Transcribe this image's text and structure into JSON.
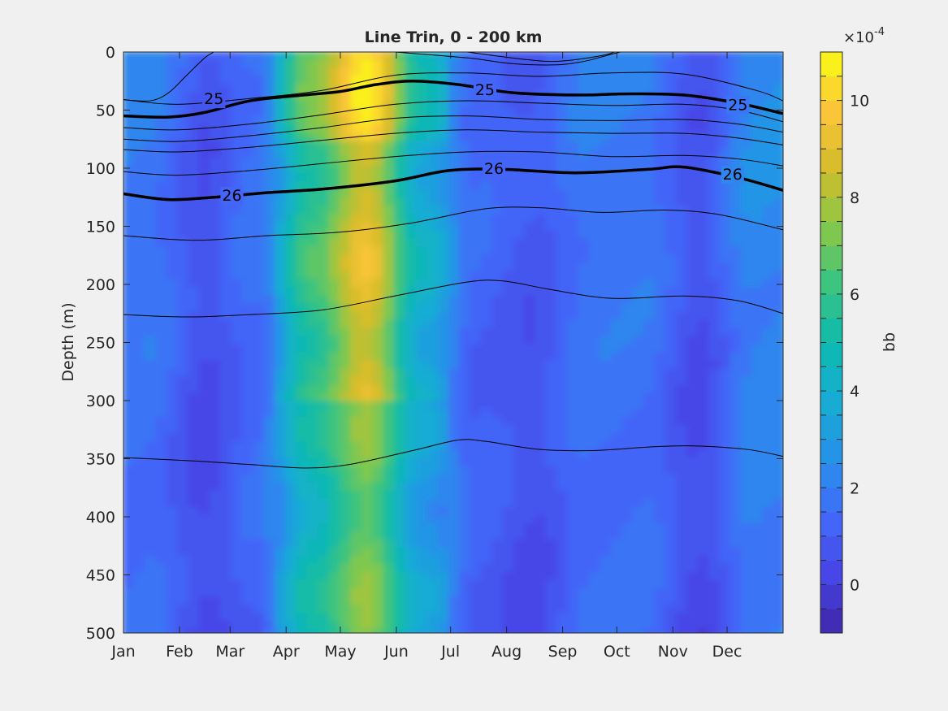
{
  "chart_data": {
    "type": "heatmap",
    "title": "Line Trin, 0 - 200 km",
    "xlabel": "",
    "ylabel": "Depth (m)",
    "x_ticks": [
      "Jan",
      "Feb",
      "Mar",
      "Apr",
      "May",
      "Jun",
      "Jul",
      "Aug",
      "Sep",
      "Oct",
      "Nov",
      "Dec"
    ],
    "x_tick_days": [
      0,
      31,
      59,
      90,
      120,
      151,
      181,
      212,
      243,
      273,
      304,
      334
    ],
    "xlim_days": [
      0,
      365
    ],
    "y_ticks": [
      0,
      50,
      100,
      150,
      200,
      250,
      300,
      350,
      400,
      450,
      500
    ],
    "ylim": [
      0,
      500
    ],
    "y_reversed": true,
    "colorbar": {
      "label": "bb",
      "exponent_label": "×10",
      "exponent_power": "-4",
      "ticks": [
        0,
        2,
        4,
        6,
        8,
        10
      ],
      "range": [
        -1,
        11
      ],
      "levels": [
        -1,
        -0.5,
        0,
        0.5,
        1,
        1.5,
        2,
        2.5,
        3,
        3.5,
        4,
        4.5,
        5,
        5.5,
        6,
        6.5,
        7,
        7.5,
        8,
        8.5,
        9,
        9.5,
        10,
        10.5,
        11
      ],
      "colormap": "parula"
    },
    "bb_profile_by_month": {
      "months": [
        "Jan",
        "Feb",
        "Mar",
        "Apr",
        "May",
        "Jun",
        "Jul",
        "Aug",
        "Sep",
        "Oct",
        "Nov",
        "Dec"
      ],
      "approx_value_x1e4": [
        2.0,
        0.8,
        1.8,
        6.0,
        9.0,
        4.0,
        1.5,
        1.0,
        2.0,
        2.0,
        0.8,
        2.5
      ]
    },
    "density_contours": [
      {
        "sigma": 25,
        "bold": true,
        "label": "25",
        "points": [
          [
            0,
            55
          ],
          [
            25,
            56
          ],
          [
            45,
            52
          ],
          [
            70,
            42
          ],
          [
            100,
            37
          ],
          [
            120,
            34
          ],
          [
            140,
            28
          ],
          [
            160,
            25
          ],
          [
            185,
            28
          ],
          [
            215,
            35
          ],
          [
            250,
            37
          ],
          [
            280,
            36
          ],
          [
            310,
            37
          ],
          [
            340,
            44
          ],
          [
            365,
            53
          ]
        ],
        "label_positions": [
          [
            50,
            40
          ],
          [
            200,
            32
          ],
          [
            340,
            45
          ]
        ]
      },
      {
        "sigma": 26,
        "bold": true,
        "label": "26",
        "points": [
          [
            0,
            122
          ],
          [
            25,
            127
          ],
          [
            50,
            125
          ],
          [
            80,
            121
          ],
          [
            110,
            118
          ],
          [
            150,
            111
          ],
          [
            180,
            102
          ],
          [
            210,
            101
          ],
          [
            250,
            104
          ],
          [
            290,
            101
          ],
          [
            310,
            99
          ],
          [
            340,
            108
          ],
          [
            365,
            119
          ]
        ],
        "label_positions": [
          [
            60,
            123
          ],
          [
            205,
            100
          ],
          [
            337,
            105
          ]
        ]
      },
      {
        "sigma": null,
        "bold": false,
        "points": [
          [
            0,
            41
          ],
          [
            15,
            42
          ],
          [
            25,
            35
          ],
          [
            35,
            20
          ],
          [
            45,
            5
          ],
          [
            50,
            0
          ]
        ]
      },
      {
        "sigma": null,
        "bold": false,
        "points": [
          [
            150,
            0
          ],
          [
            190,
            5
          ],
          [
            215,
            10
          ],
          [
            240,
            11
          ],
          [
            255,
            8
          ],
          [
            265,
            4
          ],
          [
            280,
            -2
          ]
        ]
      },
      {
        "sigma": null,
        "bold": false,
        "points": [
          [
            190,
            0
          ],
          [
            220,
            6
          ],
          [
            240,
            8
          ],
          [
            265,
            3
          ],
          [
            275,
            -2
          ]
        ]
      },
      {
        "sigma": null,
        "bold": false,
        "points": [
          [
            0,
            41
          ],
          [
            30,
            45
          ],
          [
            70,
            40
          ],
          [
            110,
            33
          ],
          [
            150,
            20
          ],
          [
            190,
            18
          ],
          [
            230,
            21
          ],
          [
            270,
            18
          ],
          [
            310,
            19
          ],
          [
            350,
            33
          ],
          [
            365,
            42
          ]
        ]
      },
      {
        "sigma": null,
        "bold": false,
        "points": [
          [
            0,
            65
          ],
          [
            30,
            67
          ],
          [
            70,
            62
          ],
          [
            110,
            54
          ],
          [
            150,
            45
          ],
          [
            190,
            42
          ],
          [
            230,
            44
          ],
          [
            270,
            46
          ],
          [
            310,
            45
          ],
          [
            340,
            50
          ],
          [
            365,
            60
          ]
        ]
      },
      {
        "sigma": null,
        "bold": false,
        "points": [
          [
            0,
            75
          ],
          [
            30,
            77
          ],
          [
            70,
            72
          ],
          [
            110,
            65
          ],
          [
            150,
            57
          ],
          [
            190,
            55
          ],
          [
            230,
            58
          ],
          [
            270,
            59
          ],
          [
            310,
            58
          ],
          [
            340,
            62
          ],
          [
            365,
            69
          ]
        ]
      },
      {
        "sigma": null,
        "bold": false,
        "points": [
          [
            0,
            84
          ],
          [
            30,
            86
          ],
          [
            70,
            82
          ],
          [
            110,
            76
          ],
          [
            150,
            70
          ],
          [
            190,
            67
          ],
          [
            230,
            69
          ],
          [
            270,
            70
          ],
          [
            310,
            70
          ],
          [
            340,
            74
          ],
          [
            365,
            80
          ]
        ]
      },
      {
        "sigma": null,
        "bold": false,
        "points": [
          [
            0,
            103
          ],
          [
            30,
            106
          ],
          [
            70,
            102
          ],
          [
            110,
            96
          ],
          [
            150,
            90
          ],
          [
            190,
            86
          ],
          [
            230,
            86
          ],
          [
            270,
            90
          ],
          [
            310,
            89
          ],
          [
            340,
            92
          ],
          [
            365,
            98
          ]
        ]
      },
      {
        "sigma": null,
        "bold": false,
        "points": [
          [
            0,
            158
          ],
          [
            40,
            162
          ],
          [
            80,
            158
          ],
          [
            120,
            155
          ],
          [
            160,
            147
          ],
          [
            200,
            135
          ],
          [
            230,
            134
          ],
          [
            265,
            138
          ],
          [
            300,
            136
          ],
          [
            330,
            140
          ],
          [
            365,
            153
          ]
        ]
      },
      {
        "sigma": null,
        "bold": false,
        "points": [
          [
            0,
            226
          ],
          [
            35,
            228
          ],
          [
            70,
            226
          ],
          [
            110,
            222
          ],
          [
            150,
            210
          ],
          [
            190,
            198
          ],
          [
            210,
            197
          ],
          [
            235,
            204
          ],
          [
            270,
            212
          ],
          [
            310,
            210
          ],
          [
            340,
            214
          ],
          [
            365,
            225
          ]
        ]
      },
      {
        "sigma": null,
        "bold": false,
        "points": [
          [
            0,
            349
          ],
          [
            40,
            352
          ],
          [
            70,
            355
          ],
          [
            100,
            358
          ],
          [
            125,
            355
          ],
          [
            160,
            343
          ],
          [
            185,
            334
          ],
          [
            200,
            335
          ],
          [
            230,
            342
          ],
          [
            260,
            343
          ],
          [
            290,
            340
          ],
          [
            315,
            339
          ],
          [
            345,
            342
          ],
          [
            365,
            348
          ]
        ]
      }
    ]
  }
}
